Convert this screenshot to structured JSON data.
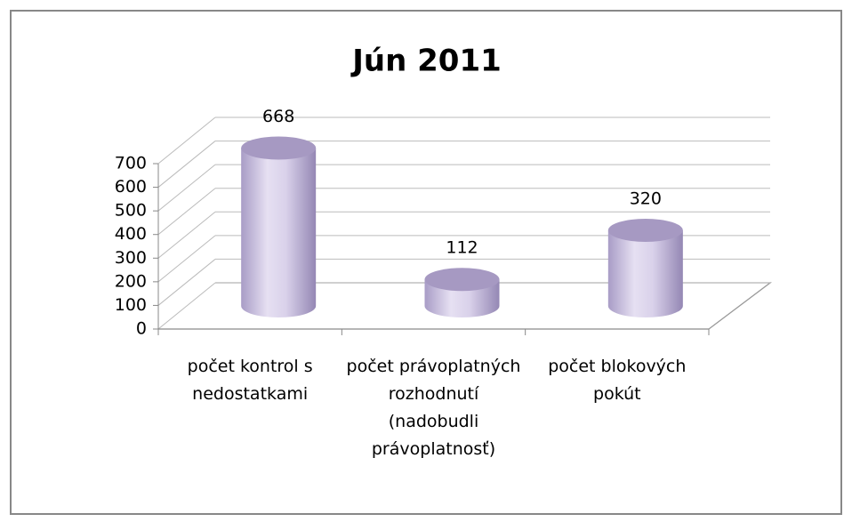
{
  "chart_data": {
    "type": "bar3d",
    "title": "Jún 2011",
    "categories": [
      "počet kontrol s nedostatkami",
      "počet právoplatných rozhodnutí (nadobudli právoplatnosť)",
      "počet blokových pokút"
    ],
    "values": [
      668,
      112,
      320
    ],
    "color": "#cfc6e4",
    "ylim": [
      0,
      700
    ],
    "yticks": [
      0,
      100,
      200,
      300,
      400,
      500,
      600,
      700
    ],
    "grid": true
  }
}
